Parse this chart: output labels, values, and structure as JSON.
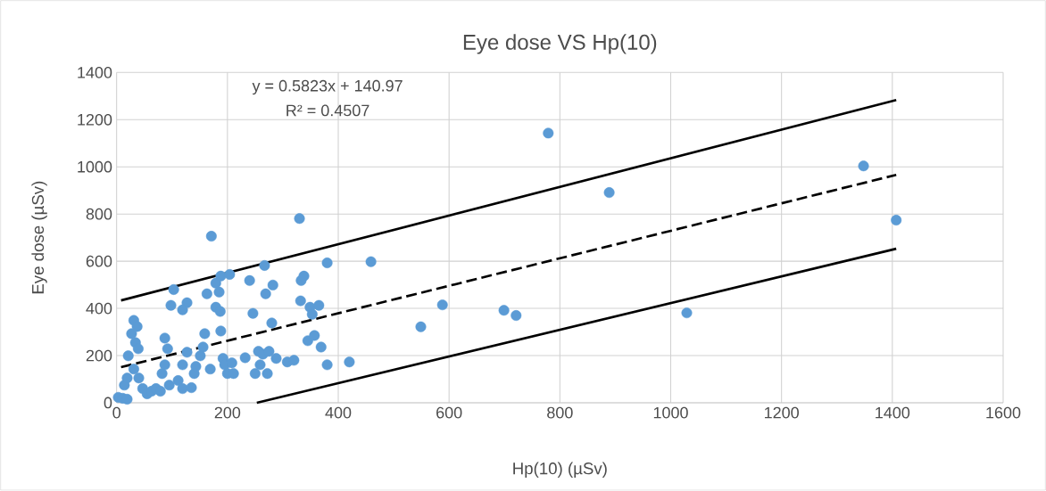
{
  "chart_data": {
    "type": "scatter",
    "title": "Eye dose VS Hp(10)",
    "xlabel": "Hp(10) (µSv)",
    "ylabel": "Eye dose (µSv)",
    "xlim": [
      0,
      1600
    ],
    "xticks": [
      0,
      200,
      400,
      600,
      800,
      1000,
      1200,
      1400,
      1600
    ],
    "ylim": [
      0,
      1400
    ],
    "yticks": [
      0,
      200,
      400,
      600,
      800,
      1000,
      1200,
      1400
    ],
    "grid": true,
    "annotations": [
      "y = 0.5823x + 140.97",
      "R² = 0.4507"
    ],
    "series": [
      {
        "type": "line",
        "color": "#000000",
        "line_style": "solid",
        "marker": "none",
        "x": [
          8,
          1407
        ],
        "values": [
          434,
          1283
        ]
      },
      {
        "type": "line",
        "color": "#000000",
        "line_style": "dashed",
        "marker": "none",
        "x": [
          8,
          1407
        ],
        "values": [
          151,
          966
        ]
      },
      {
        "type": "line",
        "color": "#000000",
        "line_style": "solid",
        "marker": "none",
        "x": [
          253,
          1407
        ],
        "values": [
          0,
          653
        ]
      },
      {
        "color": "#5b9bd5",
        "marker": "circle",
        "x": [
          3,
          11,
          19,
          14,
          19,
          21,
          27,
          31,
          37,
          34,
          39,
          31,
          40,
          47,
          55,
          63,
          71,
          79,
          82,
          87,
          92,
          87,
          98,
          103,
          95,
          111,
          119,
          119,
          127,
          127,
          119,
          135,
          140,
          143,
          151,
          156,
          159,
          163,
          169,
          171,
          179,
          179,
          185,
          187,
          188,
          192,
          195,
          188,
          200,
          204,
          208,
          211,
          232,
          240,
          246,
          250,
          256,
          259,
          264,
          267,
          269,
          272,
          275,
          280,
          282,
          288,
          308,
          320,
          330,
          332,
          333,
          338,
          345,
          349,
          353,
          357,
          365,
          369,
          380,
          380,
          459,
          420,
          549,
          588,
          699,
          721,
          779,
          889,
          1029,
          1348,
          1407
        ],
        "values": [
          23,
          19,
          15,
          75,
          105,
          199,
          293,
          349,
          323,
          255,
          229,
          143,
          105,
          60,
          38,
          49,
          60,
          49,
          124,
          161,
          229,
          274,
          413,
          480,
          75,
          94,
          60,
          161,
          214,
          424,
          394,
          64,
          124,
          154,
          199,
          236,
          293,
          462,
          143,
          706,
          405,
          507,
          469,
          387,
          537,
          188,
          161,
          304,
          124,
          544,
          169,
          124,
          191,
          518,
          379,
          124,
          218,
          161,
          206,
          582,
          462,
          124,
          218,
          338,
          499,
          188,
          173,
          180,
          781,
          432,
          518,
          537,
          263,
          405,
          375,
          285,
          413,
          236,
          161,
          593,
          598,
          173,
          322,
          415,
          392,
          370,
          1143,
          891,
          381,
          1004,
          774
        ]
      }
    ]
  }
}
